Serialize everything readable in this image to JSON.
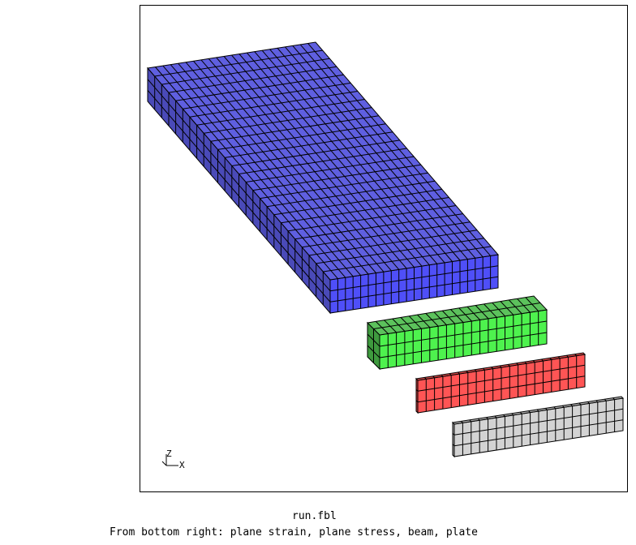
{
  "caption": {
    "filename": "run.fbl",
    "description": "From bottom right: plane strain, plane stress, beam, plate"
  },
  "axes": {
    "z_label": "Z",
    "x_label": "X"
  },
  "objects": [
    {
      "name": "plate",
      "top": "#5f5fe0",
      "front": "#4f4ff8",
      "side": "#4a4ab8",
      "cols": 22,
      "rows": 26,
      "layers": 3
    },
    {
      "name": "beam",
      "top": "#5cc25c",
      "front": "#4ef24e",
      "side": "#3e9a3e",
      "cols": 20,
      "rows": 2,
      "layers": 3
    },
    {
      "name": "plane-stress",
      "top": "#d84a4a",
      "front": "#ff5555",
      "side": "#c04040",
      "cols": 20,
      "rows": 1,
      "layers": 3
    },
    {
      "name": "plane-strain",
      "top": "#b4b4b4",
      "front": "#d3d3d3",
      "side": "#a8a8a8",
      "cols": 20,
      "rows": 1,
      "layers": 3
    }
  ]
}
